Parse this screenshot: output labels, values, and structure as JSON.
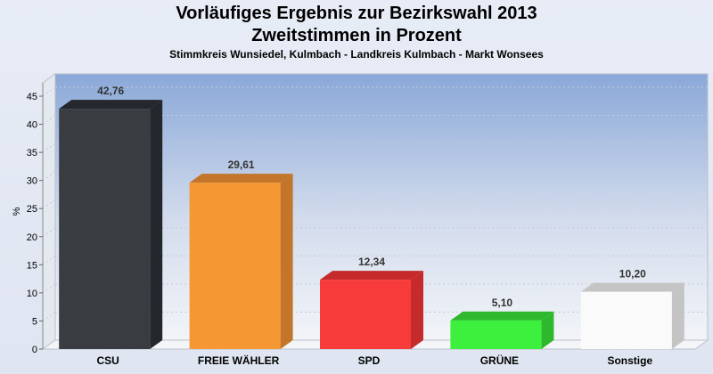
{
  "title": "Vorläufiges Ergebnis zur Bezirkswahl 2013",
  "subtitle": "Zweitstimmen in Prozent",
  "caption": "Stimmkreis Wunsiedel, Kulmbach - Landkreis Kulmbach - Markt Wonsees",
  "chart_data": {
    "type": "bar",
    "categories": [
      "CSU",
      "FREIE WÄHLER",
      "SPD",
      "GRÜNE",
      "Sonstige"
    ],
    "values": [
      42.76,
      29.61,
      12.34,
      5.1,
      10.2
    ],
    "value_labels": [
      "42,76",
      "29,61",
      "12,34",
      "5,10",
      "10,20"
    ],
    "colors": [
      "#393c41",
      "#f59833",
      "#f73a3a",
      "#3df03d",
      "#fafafa"
    ],
    "side_colors": [
      "#24272c",
      "#c3762a",
      "#c52b2b",
      "#2db82d",
      "#c4c4c4"
    ],
    "ylabel": "%",
    "ylim": [
      0,
      45
    ],
    "yticks": [
      0,
      5,
      10,
      15,
      20,
      25,
      30,
      35,
      40,
      45
    ],
    "grid": true,
    "style": "3d"
  }
}
